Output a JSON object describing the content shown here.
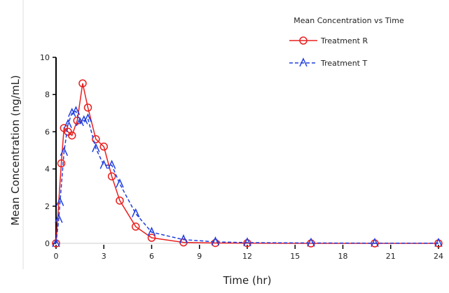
{
  "chart_data": {
    "type": "line",
    "legend_title": "Mean Concentration vs Time",
    "x_label": "Time (hr)",
    "y_label": "Mean Concentration (ng/mL)",
    "xlim": [
      0,
      24
    ],
    "xticks": [
      0,
      3,
      6,
      9,
      12,
      15,
      18,
      21,
      24
    ],
    "ylim": [
      0,
      10
    ],
    "yticks": [
      0,
      2,
      4,
      6,
      8,
      10
    ],
    "series": [
      {
        "name": "Treatment R",
        "color": "#e8201f",
        "marker": "circle",
        "dash": false,
        "x": [
          0,
          0.33,
          0.5,
          0.75,
          1,
          1.33,
          1.67,
          2,
          2.5,
          3,
          3.5,
          4,
          5,
          6,
          8,
          10,
          12,
          16,
          20,
          24
        ],
        "values": [
          0,
          4.3,
          6.2,
          6.0,
          5.8,
          6.6,
          8.6,
          7.3,
          5.6,
          5.2,
          3.6,
          2.3,
          0.9,
          0.3,
          0.05,
          0.02,
          0.01,
          0,
          0,
          0
        ]
      },
      {
        "name": "Treatment T",
        "color": "#1f3fe0",
        "marker": "triangle",
        "dash": true,
        "x": [
          0,
          0.17,
          0.25,
          0.5,
          0.75,
          1,
          1.25,
          1.5,
          1.75,
          2,
          2.5,
          3,
          3.5,
          4,
          5,
          6,
          8,
          10,
          12,
          16,
          20,
          24
        ],
        "values": [
          0,
          1.3,
          2.2,
          4.9,
          6.4,
          7.0,
          7.1,
          6.5,
          6.6,
          6.7,
          5.1,
          4.2,
          4.2,
          3.2,
          1.6,
          0.6,
          0.2,
          0.08,
          0.04,
          0.02,
          0.01,
          0.01
        ]
      }
    ]
  }
}
